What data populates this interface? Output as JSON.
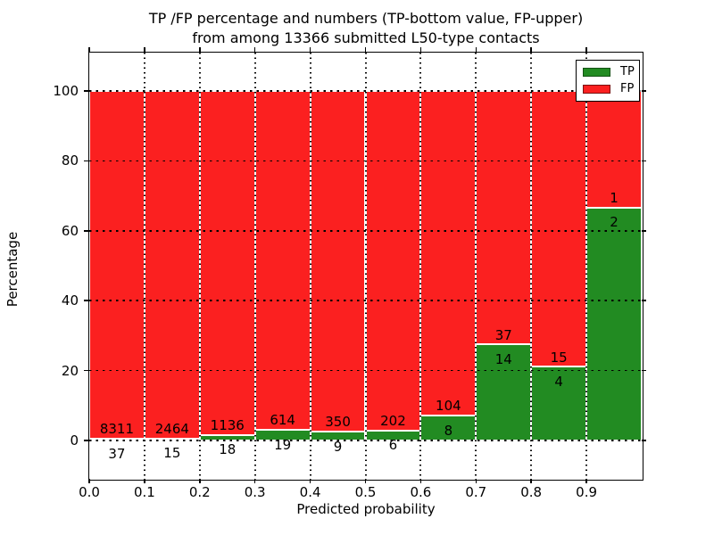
{
  "title": {
    "line1": "TP /FP percentage and numbers (TP-bottom value, FP-upper)",
    "line2": "from among 13366 submitted L50-type contacts"
  },
  "x_axis": {
    "label": "Predicted probability",
    "ticks": [
      "0.0",
      "0.1",
      "0.2",
      "0.3",
      "0.4",
      "0.5",
      "0.6",
      "0.7",
      "0.8",
      "0.9"
    ],
    "lim": [
      0,
      1
    ]
  },
  "y_axis": {
    "label": "Percentage",
    "ticks": [
      0,
      20,
      40,
      60,
      80,
      100
    ],
    "lim": [
      -11,
      111
    ]
  },
  "legend": {
    "position": "top-right",
    "entries": [
      {
        "label": "TP",
        "color": "#228b22",
        "edge": "#145214"
      },
      {
        "label": "FP",
        "color": "#fb2020",
        "edge": "#7a1010"
      }
    ]
  },
  "colors": {
    "tp": "#228b22",
    "fp": "#fb2020",
    "text": "#000000",
    "background": "#ffffff",
    "bar_edge": "#ffffff",
    "grid": "#000000"
  },
  "chart_data": {
    "type": "bar",
    "variant": "stacked-100percent",
    "title": "TP /FP percentage and numbers (TP-bottom value, FP-upper) from among 13366 submitted L50-type contacts",
    "xlabel": "Predicted probability",
    "ylabel": "Percentage",
    "total_contacts": 13366,
    "bin_width": 0.1,
    "categories": [
      "0.0-0.1",
      "0.1-0.2",
      "0.2-0.3",
      "0.3-0.4",
      "0.4-0.5",
      "0.5-0.6",
      "0.6-0.7",
      "0.7-0.8",
      "0.8-0.9",
      "0.9-1.0"
    ],
    "series": [
      {
        "name": "TP",
        "color": "#228b22",
        "counts": [
          37,
          15,
          18,
          19,
          9,
          6,
          8,
          14,
          4,
          2
        ]
      },
      {
        "name": "FP",
        "color": "#fb2020",
        "counts": [
          8311,
          2464,
          1136,
          614,
          350,
          202,
          104,
          37,
          15,
          1
        ]
      }
    ],
    "bar_value_labels": {
      "fp_upper": [
        8311,
        2464,
        1136,
        614,
        350,
        202,
        104,
        37,
        15,
        1
      ],
      "tp_bottom": [
        37,
        15,
        18,
        19,
        9,
        6,
        8,
        14,
        4,
        2
      ]
    },
    "xlim": [
      0,
      1
    ],
    "ylim": [
      -11,
      111
    ],
    "grid": true,
    "legend_position": "upper right"
  }
}
